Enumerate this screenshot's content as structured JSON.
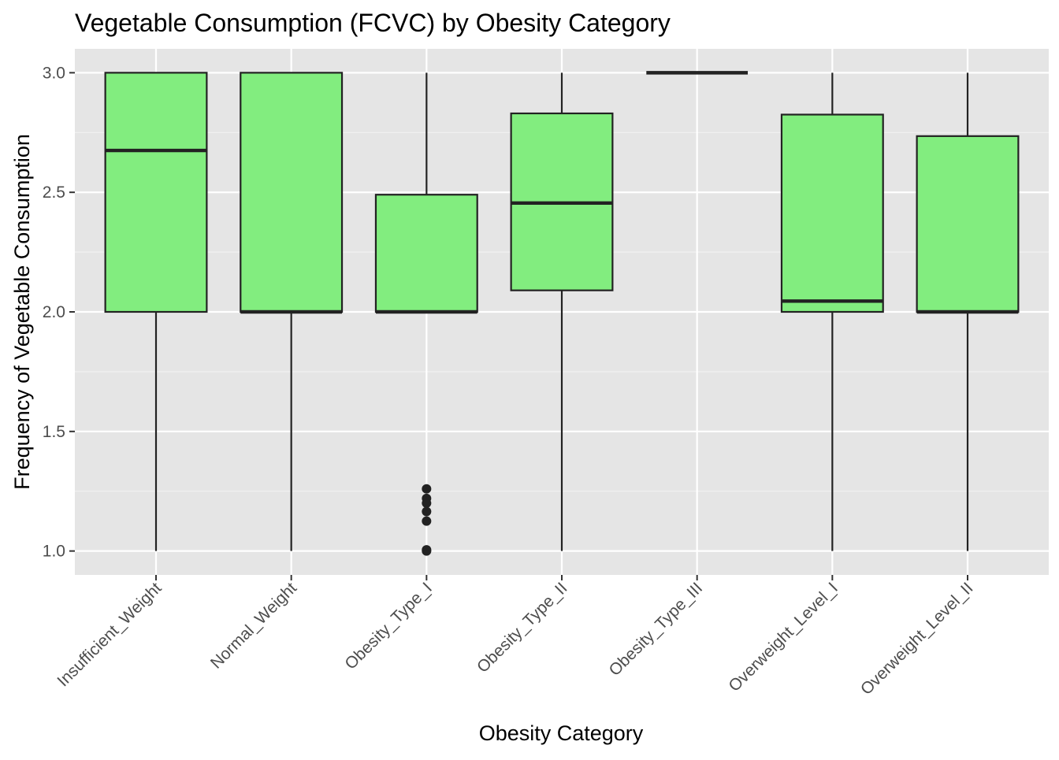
{
  "chart_data": {
    "type": "boxplot",
    "title": "Vegetable Consumption (FCVC) by Obesity Category",
    "xlabel": "Obesity Category",
    "ylabel": "Frequency of Vegetable Consumption",
    "ylim": [
      0.9,
      3.1
    ],
    "yticks": [
      "1.0",
      "1.5",
      "2.0",
      "2.5",
      "3.0"
    ],
    "ytick_values": [
      1.0,
      1.5,
      2.0,
      2.5,
      3.0
    ],
    "grid": true,
    "legend": "none",
    "categories": [
      "Insufficient_Weight",
      "Normal_Weight",
      "Obesity_Type_I",
      "Obesity_Type_II",
      "Obesity_Type_III",
      "Overweight_Level_I",
      "Overweight_Level_II"
    ],
    "boxes": [
      {
        "category": "Insufficient_Weight",
        "whisker_low": 1.0,
        "q1": 2.0,
        "median": 2.675,
        "q3": 3.0,
        "whisker_high": 3.0,
        "outliers": []
      },
      {
        "category": "Normal_Weight",
        "whisker_low": 1.0,
        "q1": 2.0,
        "median": 2.0,
        "q3": 3.0,
        "whisker_high": 3.0,
        "outliers": []
      },
      {
        "category": "Obesity_Type_I",
        "whisker_low": 2.0,
        "q1": 2.0,
        "median": 2.0,
        "q3": 2.49,
        "whisker_high": 3.0,
        "outliers": [
          1.0,
          1.005,
          1.125,
          1.165,
          1.2,
          1.22,
          1.26
        ]
      },
      {
        "category": "Obesity_Type_II",
        "whisker_low": 1.0,
        "q1": 2.09,
        "median": 2.455,
        "q3": 2.83,
        "whisker_high": 3.0,
        "outliers": []
      },
      {
        "category": "Obesity_Type_III",
        "whisker_low": 3.0,
        "q1": 3.0,
        "median": 3.0,
        "q3": 3.0,
        "whisker_high": 3.0,
        "outliers": []
      },
      {
        "category": "Overweight_Level_I",
        "whisker_low": 1.0,
        "q1": 2.0,
        "median": 2.045,
        "q3": 2.825,
        "whisker_high": 3.0,
        "outliers": []
      },
      {
        "category": "Overweight_Level_II",
        "whisker_low": 1.0,
        "q1": 2.0,
        "median": 2.0,
        "q3": 2.735,
        "whisker_high": 3.0,
        "outliers": []
      }
    ],
    "colors": {
      "box_fill": "#82ed7f",
      "box_stroke": "#222222",
      "panel_background": "#e5e5e5",
      "grid_major": "#ffffff",
      "grid_minor": "#f2f2f2"
    }
  }
}
